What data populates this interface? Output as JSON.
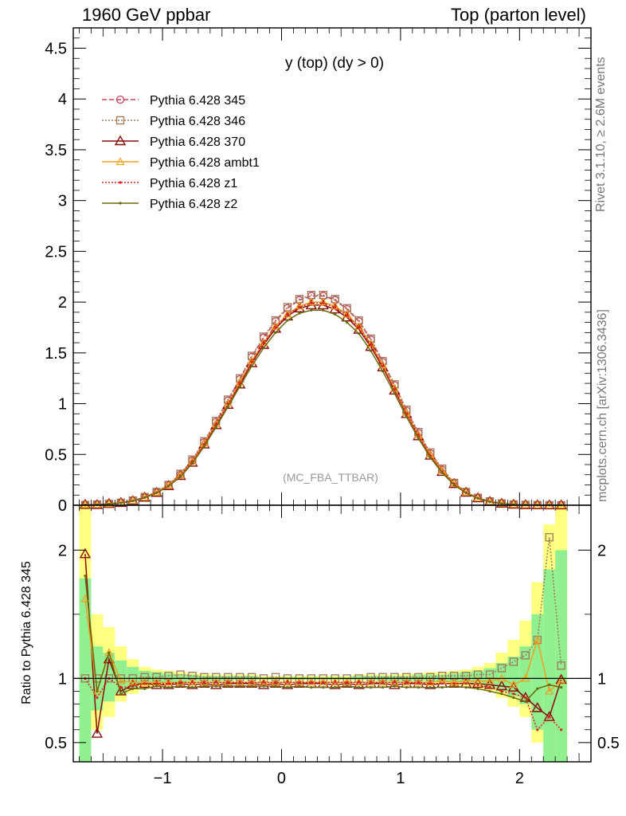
{
  "header": {
    "left": "1960 GeV ppbar",
    "right": "Top (parton level)"
  },
  "side_labels": {
    "rivet": "Rivet 3.1.10, ≥ 2.6M events",
    "mcplots": "mcplots.cern.ch [arXiv:1306.3436]"
  },
  "chart_data": [
    {
      "type": "line",
      "title": "y (top) (dy > 0)",
      "watermark": "(MC_FBA_TTBAR)",
      "xlim": [
        -1.75,
        2.6
      ],
      "ylim": [
        0,
        4.7
      ],
      "yticks": [
        "0",
        "0.5",
        "1",
        "1.5",
        "2",
        "2.5",
        "3",
        "3.5",
        "4",
        "4.5"
      ],
      "legend_position": "top-left",
      "x": [
        -1.65,
        -1.55,
        -1.45,
        -1.35,
        -1.25,
        -1.15,
        -1.05,
        -0.95,
        -0.85,
        -0.75,
        -0.65,
        -0.55,
        -0.45,
        -0.35,
        -0.25,
        -0.15,
        -0.05,
        0.05,
        0.15,
        0.25,
        0.35,
        0.45,
        0.55,
        0.65,
        0.75,
        0.85,
        0.95,
        1.05,
        1.15,
        1.25,
        1.35,
        1.45,
        1.55,
        1.65,
        1.75,
        1.85,
        1.95,
        2.05,
        2.15,
        2.25,
        2.35
      ],
      "series": [
        {
          "name": "Pythia 6.428 345",
          "color": "#c8405a",
          "dash": "6,3",
          "marker": "circle",
          "values": [
            0.003,
            0.007,
            0.013,
            0.025,
            0.046,
            0.08,
            0.13,
            0.2,
            0.3,
            0.44,
            0.62,
            0.82,
            1.03,
            1.24,
            1.46,
            1.65,
            1.81,
            1.94,
            2.02,
            2.06,
            2.06,
            2.02,
            1.93,
            1.81,
            1.63,
            1.41,
            1.18,
            0.93,
            0.71,
            0.51,
            0.35,
            0.22,
            0.13,
            0.072,
            0.037,
            0.018,
            0.008,
            0.004,
            0.002,
            0.001,
            0.0005
          ]
        },
        {
          "name": "Pythia 6.428 346",
          "color": "#a0785a",
          "dash": "2,2",
          "marker": "square",
          "values": [
            0.003,
            0.007,
            0.013,
            0.025,
            0.046,
            0.08,
            0.13,
            0.2,
            0.31,
            0.45,
            0.63,
            0.83,
            1.04,
            1.25,
            1.47,
            1.66,
            1.82,
            1.95,
            2.03,
            2.07,
            2.07,
            2.03,
            1.94,
            1.82,
            1.64,
            1.42,
            1.19,
            0.94,
            0.72,
            0.52,
            0.36,
            0.22,
            0.13,
            0.073,
            0.038,
            0.018,
            0.008,
            0.004,
            0.002,
            0.001,
            0.0005
          ]
        },
        {
          "name": "Pythia 6.428 370",
          "color": "#8b0a0a",
          "dash": "",
          "marker": "triangle",
          "values": [
            0.006,
            0.004,
            0.015,
            0.024,
            0.042,
            0.076,
            0.123,
            0.19,
            0.29,
            0.42,
            0.6,
            0.79,
            0.99,
            1.19,
            1.4,
            1.58,
            1.74,
            1.86,
            1.94,
            1.97,
            1.97,
            1.93,
            1.85,
            1.73,
            1.56,
            1.36,
            1.13,
            0.9,
            0.68,
            0.49,
            0.33,
            0.21,
            0.125,
            0.07,
            0.035,
            0.017,
            0.007,
            0.003,
            0.0015,
            0.0007,
            0.0004
          ]
        },
        {
          "name": "Pythia 6.428 ambt1",
          "color": "#f0a020",
          "dash": "",
          "marker": "triangle-small",
          "values": [
            0.005,
            0.006,
            0.014,
            0.026,
            0.045,
            0.078,
            0.126,
            0.195,
            0.295,
            0.43,
            0.61,
            0.8,
            1.0,
            1.21,
            1.42,
            1.6,
            1.76,
            1.88,
            1.96,
            2.0,
            2.0,
            1.96,
            1.88,
            1.76,
            1.59,
            1.38,
            1.15,
            0.91,
            0.69,
            0.5,
            0.34,
            0.215,
            0.127,
            0.071,
            0.036,
            0.018,
            0.008,
            0.004,
            0.002,
            0.001,
            0.0005
          ]
        },
        {
          "name": "Pythia 6.428 z1",
          "color": "#e02020",
          "dash": "2,2",
          "marker": "dot",
          "values": [
            0.003,
            0.006,
            0.012,
            0.023,
            0.043,
            0.077,
            0.124,
            0.192,
            0.29,
            0.43,
            0.6,
            0.8,
            1.0,
            1.2,
            1.41,
            1.6,
            1.75,
            1.88,
            1.95,
            1.99,
            1.99,
            1.95,
            1.87,
            1.75,
            1.58,
            1.37,
            1.14,
            0.9,
            0.69,
            0.49,
            0.33,
            0.21,
            0.125,
            0.07,
            0.035,
            0.017,
            0.007,
            0.003,
            0.0015,
            0.0007,
            0.0003
          ]
        },
        {
          "name": "Pythia 6.428 z2",
          "color": "#6b6b0a",
          "dash": "",
          "marker": "dot",
          "values": [
            0.003,
            0.006,
            0.012,
            0.023,
            0.042,
            0.074,
            0.12,
            0.186,
            0.28,
            0.41,
            0.58,
            0.77,
            0.97,
            1.17,
            1.37,
            1.55,
            1.7,
            1.82,
            1.89,
            1.92,
            1.92,
            1.88,
            1.8,
            1.69,
            1.52,
            1.32,
            1.1,
            0.87,
            0.66,
            0.47,
            0.32,
            0.2,
            0.12,
            0.067,
            0.034,
            0.016,
            0.007,
            0.003,
            0.0015,
            0.0007,
            0.0003
          ]
        }
      ]
    },
    {
      "type": "line",
      "ylabel": "Ratio to Pythia 6.428 345",
      "xlim": [
        -1.75,
        2.6
      ],
      "ylim": [
        0.35,
        2.35
      ],
      "yticks": [
        "0.5",
        "1",
        "2"
      ],
      "xticks": [
        "−1",
        "0",
        "1",
        "2"
      ],
      "x": [
        -1.65,
        -1.55,
        -1.45,
        -1.35,
        -1.25,
        -1.15,
        -1.05,
        -0.95,
        -0.85,
        -0.75,
        -0.65,
        -0.55,
        -0.45,
        -0.35,
        -0.25,
        -0.15,
        -0.05,
        0.05,
        0.15,
        0.25,
        0.35,
        0.45,
        0.55,
        0.65,
        0.75,
        0.85,
        0.95,
        1.05,
        1.15,
        1.25,
        1.35,
        1.45,
        1.55,
        1.65,
        1.75,
        1.85,
        1.95,
        2.05,
        2.15,
        2.25,
        2.35
      ],
      "band_yellow": [
        [
          0.3,
          2.4
        ],
        [
          0.6,
          1.5
        ],
        [
          0.7,
          1.4
        ],
        [
          0.82,
          1.25
        ],
        [
          0.88,
          1.15
        ],
        [
          0.92,
          1.09
        ],
        [
          0.94,
          1.07
        ],
        [
          0.95,
          1.06
        ],
        [
          0.96,
          1.05
        ],
        [
          0.96,
          1.04
        ],
        [
          0.97,
          1.04
        ],
        [
          0.97,
          1.03
        ],
        [
          0.97,
          1.03
        ],
        [
          0.98,
          1.03
        ],
        [
          0.98,
          1.03
        ],
        [
          0.98,
          1.02
        ],
        [
          0.98,
          1.02
        ],
        [
          0.98,
          1.02
        ],
        [
          0.98,
          1.02
        ],
        [
          0.98,
          1.02
        ],
        [
          0.98,
          1.02
        ],
        [
          0.98,
          1.02
        ],
        [
          0.98,
          1.02
        ],
        [
          0.98,
          1.03
        ],
        [
          0.98,
          1.03
        ],
        [
          0.97,
          1.03
        ],
        [
          0.97,
          1.03
        ],
        [
          0.97,
          1.04
        ],
        [
          0.97,
          1.04
        ],
        [
          0.96,
          1.05
        ],
        [
          0.96,
          1.05
        ],
        [
          0.95,
          1.06
        ],
        [
          0.94,
          1.07
        ],
        [
          0.92,
          1.09
        ],
        [
          0.9,
          1.12
        ],
        [
          0.85,
          1.2
        ],
        [
          0.78,
          1.3
        ],
        [
          0.7,
          1.45
        ],
        [
          0.5,
          1.75
        ],
        [
          0.35,
          2.2
        ],
        [
          0.3,
          2.4
        ]
      ],
      "band_green": [
        [
          0.3,
          1.78
        ],
        [
          0.75,
          1.25
        ],
        [
          0.82,
          1.2
        ],
        [
          0.88,
          1.14
        ],
        [
          0.92,
          1.09
        ],
        [
          0.95,
          1.06
        ],
        [
          0.96,
          1.05
        ],
        [
          0.97,
          1.04
        ],
        [
          0.97,
          1.03
        ],
        [
          0.98,
          1.03
        ],
        [
          0.98,
          1.02
        ],
        [
          0.98,
          1.02
        ],
        [
          0.98,
          1.02
        ],
        [
          0.99,
          1.02
        ],
        [
          0.99,
          1.02
        ],
        [
          0.99,
          1.01
        ],
        [
          0.99,
          1.01
        ],
        [
          0.99,
          1.01
        ],
        [
          0.99,
          1.01
        ],
        [
          0.99,
          1.01
        ],
        [
          0.99,
          1.01
        ],
        [
          0.99,
          1.01
        ],
        [
          0.99,
          1.01
        ],
        [
          0.99,
          1.02
        ],
        [
          0.99,
          1.02
        ],
        [
          0.98,
          1.02
        ],
        [
          0.98,
          1.02
        ],
        [
          0.98,
          1.02
        ],
        [
          0.98,
          1.03
        ],
        [
          0.98,
          1.03
        ],
        [
          0.97,
          1.03
        ],
        [
          0.97,
          1.04
        ],
        [
          0.96,
          1.05
        ],
        [
          0.95,
          1.06
        ],
        [
          0.93,
          1.08
        ],
        [
          0.9,
          1.12
        ],
        [
          0.86,
          1.17
        ],
        [
          0.8,
          1.25
        ],
        [
          0.6,
          1.5
        ],
        [
          0.35,
          1.85
        ],
        [
          0.3,
          2.0
        ]
      ],
      "series": [
        {
          "name": "Pythia 6.428 346",
          "color": "#a0785a",
          "dash": "2,2",
          "marker": "square",
          "values": [
            1.0,
            1.0,
            1.0,
            1.0,
            1.0,
            1.01,
            1.01,
            1.02,
            1.03,
            1.02,
            1.01,
            1.01,
            1.01,
            1.01,
            1.01,
            1.0,
            1.01,
            1.0,
            1.0,
            1.0,
            1.0,
            1.0,
            1.0,
            1.0,
            1.01,
            1.01,
            1.01,
            1.01,
            1.01,
            1.01,
            1.02,
            1.02,
            1.02,
            1.03,
            1.03,
            1.08,
            1.13,
            1.18,
            1.3,
            2.1,
            1.1
          ]
        },
        {
          "name": "Pythia 6.428 370",
          "color": "#8b0a0a",
          "dash": "",
          "marker": "triangle",
          "values": [
            1.97,
            0.57,
            1.15,
            0.9,
            0.95,
            0.96,
            0.95,
            0.95,
            0.96,
            0.95,
            0.96,
            0.95,
            0.96,
            0.96,
            0.96,
            0.95,
            0.96,
            0.95,
            0.96,
            0.96,
            0.96,
            0.95,
            0.96,
            0.95,
            0.96,
            0.96,
            0.95,
            0.96,
            0.96,
            0.95,
            0.96,
            0.96,
            0.96,
            0.96,
            0.95,
            0.94,
            0.93,
            0.85,
            0.77,
            0.7,
            0.99
          ]
        },
        {
          "name": "Pythia 6.428 ambt1",
          "color": "#f0a020",
          "dash": "",
          "marker": "triangle-small",
          "values": [
            1.62,
            0.9,
            1.2,
            0.98,
            0.97,
            0.97,
            0.97,
            0.97,
            0.97,
            0.97,
            0.97,
            0.97,
            0.97,
            0.97,
            0.97,
            0.97,
            0.97,
            0.97,
            0.97,
            0.97,
            0.97,
            0.97,
            0.97,
            0.97,
            0.97,
            0.97,
            0.97,
            0.97,
            0.97,
            0.97,
            0.98,
            0.97,
            0.98,
            0.98,
            0.98,
            1.0,
            0.95,
            1.0,
            1.3,
            0.9,
            0.98
          ]
        },
        {
          "name": "Pythia 6.428 z1",
          "color": "#e02020",
          "dash": "2,2",
          "marker": "dot",
          "values": [
            1.0,
            0.85,
            1.0,
            0.93,
            0.94,
            0.96,
            0.96,
            0.96,
            0.97,
            0.97,
            0.97,
            0.97,
            0.97,
            0.97,
            0.97,
            0.97,
            0.97,
            0.97,
            0.97,
            0.97,
            0.97,
            0.97,
            0.97,
            0.97,
            0.97,
            0.97,
            0.97,
            0.97,
            0.97,
            0.96,
            0.96,
            0.96,
            0.96,
            0.95,
            0.93,
            0.9,
            0.88,
            0.85,
            0.6,
            0.7,
            0.6
          ]
        },
        {
          "name": "Pythia 6.428 z2",
          "color": "#6b6b0a",
          "dash": "",
          "marker": "dot",
          "values": [
            1.8,
            0.9,
            1.2,
            0.88,
            0.92,
            0.92,
            0.94,
            0.93,
            0.94,
            0.93,
            0.94,
            0.94,
            0.94,
            0.94,
            0.94,
            0.94,
            0.94,
            0.93,
            0.94,
            0.93,
            0.93,
            0.93,
            0.94,
            0.93,
            0.93,
            0.93,
            0.94,
            0.93,
            0.93,
            0.93,
            0.93,
            0.94,
            0.93,
            0.92,
            0.9,
            0.88,
            0.85,
            0.82,
            0.92,
            0.95,
            0.93
          ]
        }
      ]
    }
  ]
}
